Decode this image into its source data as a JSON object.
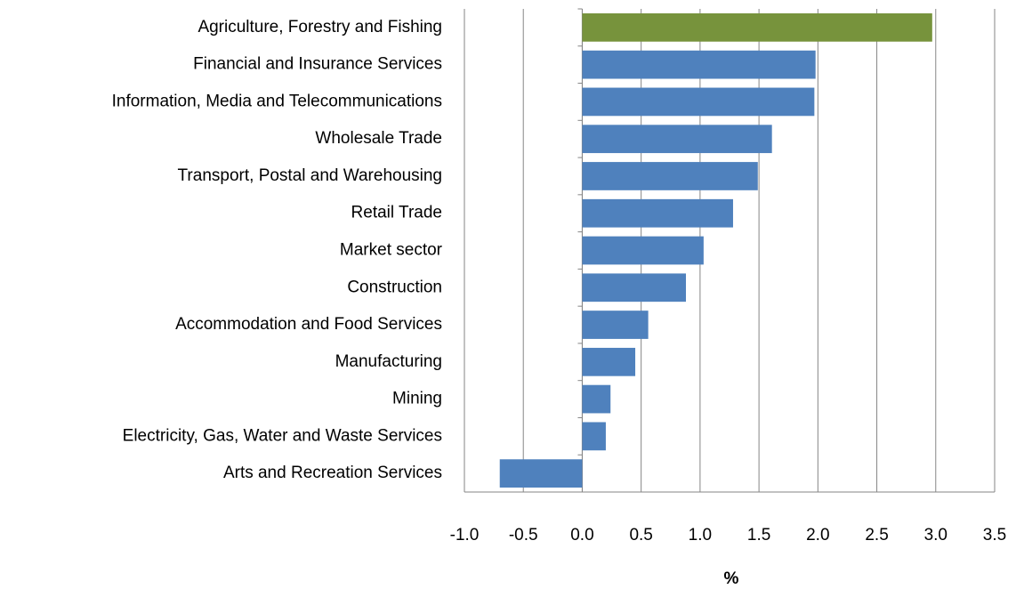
{
  "chart_data": {
    "type": "bar",
    "orientation": "horizontal",
    "categories": [
      "Agriculture, Forestry and Fishing",
      "Financial and Insurance Services",
      "Information, Media and Telecommunications",
      "Wholesale Trade",
      "Transport, Postal and Warehousing",
      "Retail Trade",
      "Market sector",
      "Construction",
      "Accommodation and Food Services",
      "Manufacturing",
      "Mining",
      "Electricity, Gas, Water and Waste Services",
      "Arts and Recreation Services"
    ],
    "values": [
      2.97,
      1.98,
      1.97,
      1.61,
      1.49,
      1.28,
      1.03,
      0.88,
      0.56,
      0.45,
      0.24,
      0.2,
      -0.7
    ],
    "colors": [
      "#77933c",
      "#4f81bd",
      "#4f81bd",
      "#4f81bd",
      "#4f81bd",
      "#4f81bd",
      "#4f81bd",
      "#4f81bd",
      "#4f81bd",
      "#4f81bd",
      "#4f81bd",
      "#4f81bd",
      "#4f81bd"
    ],
    "xlabel": "%",
    "xlim": [
      -1,
      3.5
    ],
    "xticks": [
      {
        "value": -1,
        "label": "-1.0"
      },
      -0.5,
      {
        "value": 0,
        "label": "0.0"
      },
      0.5,
      {
        "value": 1,
        "label": "1.0"
      },
      1.5,
      {
        "value": 2,
        "label": "2.0"
      },
      2.5,
      {
        "value": 3,
        "label": "3.0"
      },
      3.5
    ],
    "grid": true
  }
}
